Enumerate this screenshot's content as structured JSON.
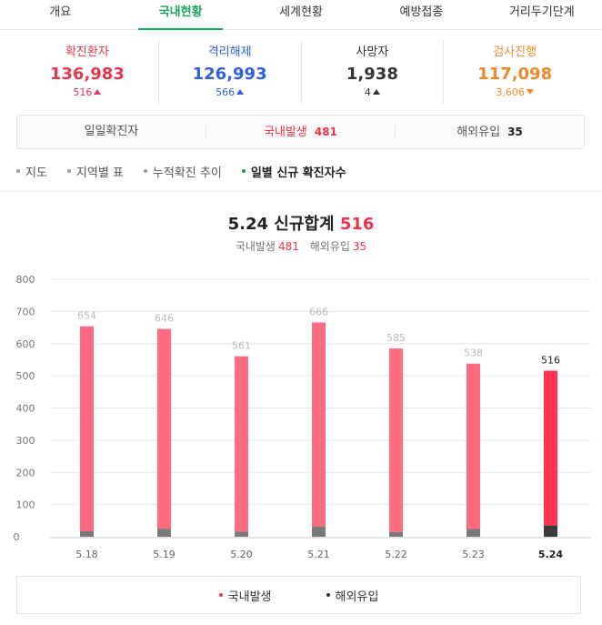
{
  "tabs": [
    {
      "label": "개요",
      "active": false
    },
    {
      "label": "국내현황",
      "active": true
    },
    {
      "label": "세계현황",
      "active": false
    },
    {
      "label": "예방접종",
      "active": false
    },
    {
      "label": "거리두기단계",
      "active": false
    }
  ],
  "stats": [
    {
      "label": "확진환자",
      "value": "136,983",
      "change": "516",
      "direction": "up",
      "color": "#e8344e"
    },
    {
      "label": "격리해제",
      "value": "126,993",
      "change": "566",
      "direction": "up",
      "color": "#2f5fe3"
    },
    {
      "label": "사망자",
      "value": "1,938",
      "change": "4",
      "direction": "up",
      "color": "#333333"
    },
    {
      "label": "검사진행",
      "value": "117,098",
      "change": "3,606",
      "direction": "down",
      "color": "#f0892b"
    }
  ],
  "daily": {
    "label": "일일확진자",
    "domestic_label": "국내발생",
    "domestic_value": "481",
    "overseas_label": "해외유입",
    "overseas_value": "35"
  },
  "subnav": [
    {
      "label": "지도",
      "active": false
    },
    {
      "label": "지역별 표",
      "active": false
    },
    {
      "label": "누적확진 추이",
      "active": false
    },
    {
      "label": "일별 신규 확진자수",
      "active": true
    }
  ],
  "chart_header": {
    "title": "5.24 신규합계",
    "total": "516",
    "domestic_label": "국내발생",
    "domestic_value": "481",
    "overseas_label": "해외유입",
    "overseas_value": "35"
  },
  "chart_data": {
    "type": "bar",
    "stacked": true,
    "categories": [
      "5.18",
      "5.19",
      "5.20",
      "5.21",
      "5.22",
      "5.23",
      "5.24"
    ],
    "totals": [
      654,
      646,
      561,
      666,
      585,
      538,
      516
    ],
    "series": [
      {
        "name": "국내발생",
        "values": [
          637,
          621,
          545,
          634,
          570,
          514,
          481
        ],
        "color": "#ff6b81",
        "highlight_color": "#ff3352"
      },
      {
        "name": "해외유입",
        "values": [
          17,
          25,
          16,
          32,
          15,
          24,
          35
        ],
        "color": "#7a7a7a",
        "highlight_color": "#3a3a3a"
      }
    ],
    "highlight_index": 6,
    "ylim": [
      0,
      800
    ],
    "yticks": [
      0,
      100,
      200,
      300,
      400,
      500,
      600,
      700,
      800
    ],
    "grid": true,
    "legend_position": "bottom-center"
  },
  "legend": [
    {
      "label": "국내발생",
      "color": "#f0334b"
    },
    {
      "label": "해외유입",
      "color": "#333333"
    }
  ]
}
